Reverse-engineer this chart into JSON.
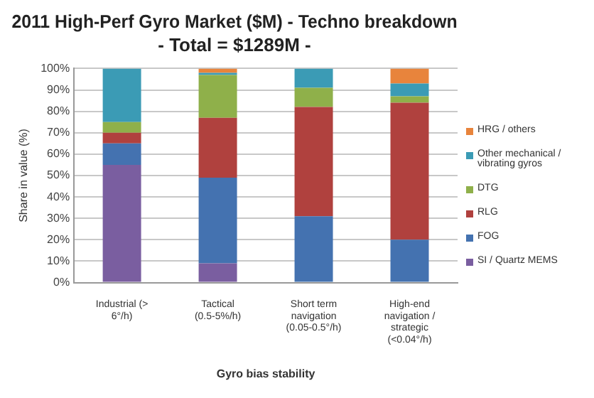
{
  "chart_data": {
    "type": "bar",
    "stacked": true,
    "title": "2011 High-Perf Gyro Market ($M) - Techno breakdown",
    "subtitle": "- Total = $1289M -",
    "xlabel": "Gyro bias stability",
    "ylabel": "Share in value (%)",
    "categories": [
      "Industrial (> 6°/h)",
      "Tactical (0.5-5%/h)",
      "Short term navigation (0.05-0.5°/h)",
      "High-end navigation / strategic (<0.04°/h)"
    ],
    "series": [
      {
        "name": "SI / Quartz MEMS",
        "color": "#7a5ea0",
        "values": [
          55,
          9,
          0,
          0
        ]
      },
      {
        "name": "FOG",
        "color": "#4472b0",
        "values": [
          10,
          40,
          31,
          20
        ]
      },
      {
        "name": "RLG",
        "color": "#b0413e",
        "values": [
          5,
          28,
          51,
          64
        ]
      },
      {
        "name": "DTG",
        "color": "#8fb04a",
        "values": [
          5,
          20,
          9,
          3
        ]
      },
      {
        "name": "Other mechanical / vibrating gyros",
        "color": "#3b9bb5",
        "values": [
          25,
          1,
          9,
          6
        ]
      },
      {
        "name": "HRG / others",
        "color": "#e8843c",
        "values": [
          0,
          2,
          0,
          7
        ]
      }
    ],
    "ylim": [
      0,
      100
    ],
    "yticks": [
      {
        "value": 0,
        "label": "0%"
      },
      {
        "value": 10,
        "label": "10%"
      },
      {
        "value": 20,
        "label": "20%"
      },
      {
        "value": 30,
        "label": "30%"
      },
      {
        "value": 40,
        "label": "40%"
      },
      {
        "value": 50,
        "label": "50%"
      },
      {
        "value": 60,
        "label": "60%"
      },
      {
        "value": 70,
        "label": "70%"
      },
      {
        "value": 80,
        "label": "80%"
      },
      {
        "value": 90,
        "label": "90%"
      },
      {
        "value": 100,
        "label": "100%"
      }
    ],
    "grid": "y",
    "legend": "right"
  }
}
